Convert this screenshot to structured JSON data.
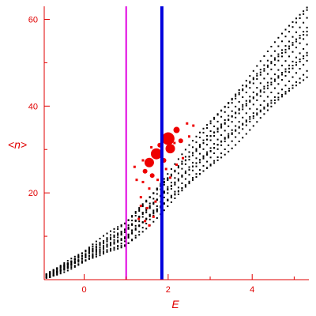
{
  "chart_data": {
    "type": "scatter",
    "title": "",
    "xlabel": "E",
    "ylabel": "<n>",
    "xlim": [
      -0.95,
      5.35
    ],
    "ylim": [
      0,
      63
    ],
    "xticks": [
      0,
      2,
      4
    ],
    "yticks": [
      20,
      40,
      60
    ],
    "xtick_labels": [
      "0",
      "2",
      "4"
    ],
    "ytick_labels": [
      "20",
      "40",
      "60"
    ],
    "grid": false,
    "vertical_lines": [
      {
        "x": 1.0,
        "color": "#e000e0"
      },
      {
        "x": 1.85,
        "color": "#0000dd"
      }
    ],
    "series": [
      {
        "color": "#000000",
        "description": "dense lattice of small dots forming a wedge: lower boundary from (-0.9,0.7) through (1.0,8) to (5.3,47); upper boundary from (-0.9,0.7) through (1.0,13) to (5.3,63)"
      },
      {
        "color": "#ee0000",
        "points": [
          {
            "x": 2.0,
            "y": 32.5,
            "s": 8
          },
          {
            "x": 1.72,
            "y": 29.0,
            "s": 7
          },
          {
            "x": 1.55,
            "y": 27.0,
            "s": 6
          },
          {
            "x": 2.05,
            "y": 30.2,
            "s": 6
          },
          {
            "x": 2.2,
            "y": 34.5,
            "s": 4
          },
          {
            "x": 1.45,
            "y": 25.0,
            "s": 3
          },
          {
            "x": 1.62,
            "y": 24.0,
            "s": 3
          },
          {
            "x": 2.3,
            "y": 32.0,
            "s": 3
          },
          {
            "x": 1.9,
            "y": 27.5,
            "s": 3
          },
          {
            "x": 1.8,
            "y": 31.0,
            "s": 3
          },
          {
            "x": 2.45,
            "y": 36.0,
            "s": 2
          },
          {
            "x": 2.5,
            "y": 33.0,
            "s": 2
          },
          {
            "x": 2.35,
            "y": 28.0,
            "s": 2
          },
          {
            "x": 2.2,
            "y": 26.5,
            "s": 2
          },
          {
            "x": 1.95,
            "y": 25.5,
            "s": 2
          },
          {
            "x": 1.75,
            "y": 23.0,
            "s": 2
          },
          {
            "x": 1.55,
            "y": 21.0,
            "s": 2
          },
          {
            "x": 1.4,
            "y": 22.5,
            "s": 2
          },
          {
            "x": 1.25,
            "y": 23.0,
            "s": 2
          },
          {
            "x": 1.35,
            "y": 19.0,
            "s": 2
          },
          {
            "x": 1.5,
            "y": 16.5,
            "s": 2
          },
          {
            "x": 1.45,
            "y": 13.5,
            "s": 2
          },
          {
            "x": 1.7,
            "y": 18.0,
            "s": 2
          },
          {
            "x": 1.85,
            "y": 22.0,
            "s": 2
          },
          {
            "x": 2.05,
            "y": 23.5,
            "s": 2
          },
          {
            "x": 2.6,
            "y": 35.5,
            "s": 2
          },
          {
            "x": 2.15,
            "y": 31.5,
            "s": 2
          },
          {
            "x": 1.6,
            "y": 30.5,
            "s": 2
          },
          {
            "x": 1.4,
            "y": 27.5,
            "s": 2
          },
          {
            "x": 1.2,
            "y": 26.0,
            "s": 2
          },
          {
            "x": 1.65,
            "y": 14.5,
            "s": 2
          },
          {
            "x": 1.35,
            "y": 17.0,
            "s": 2
          },
          {
            "x": 1.3,
            "y": 14.0,
            "s": 2
          },
          {
            "x": 1.55,
            "y": 12.5,
            "s": 2
          }
        ]
      }
    ]
  }
}
